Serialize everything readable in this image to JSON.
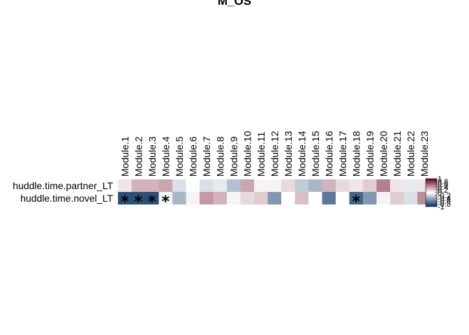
{
  "chart_data": {
    "type": "heatmap",
    "title": "M_OS",
    "rows": [
      "huddle.time.partner_LT",
      "huddle.time.novel_LT"
    ],
    "columns": [
      "Module.1",
      "Module.2",
      "Module.3",
      "Module.4",
      "Module.5",
      "Module.6",
      "Module.7",
      "Module.8",
      "Module.9",
      "Module.10",
      "Module.11",
      "Module.12",
      "Module.13",
      "Module.14",
      "Module.15",
      "Module.16",
      "Module.17",
      "Module.18",
      "Module.19",
      "Module.20",
      "Module.21",
      "Module.22",
      "Module.23"
    ],
    "values": [
      [
        0.1,
        0.3,
        0.3,
        0.35,
        -0.15,
        0.0,
        -0.15,
        -0.1,
        -0.3,
        0.35,
        0.05,
        0.05,
        0.15,
        -0.25,
        -0.35,
        0.3,
        0.15,
        0.1,
        0.2,
        0.5,
        0.1,
        -0.1,
        0.1
      ],
      [
        -0.85,
        -0.85,
        -0.85,
        -0.05,
        -0.35,
        0.05,
        0.4,
        0.3,
        -0.05,
        0.15,
        0.2,
        -0.5,
        0.0,
        0.25,
        0.0,
        -0.65,
        0.0,
        -0.75,
        -0.5,
        0.05,
        0.2,
        -0.15,
        0.45
      ]
    ],
    "significance": [
      [
        "",
        "",
        "",
        "",
        "",
        "",
        "",
        "",
        "",
        "",
        "",
        "",
        "",
        "",
        "",
        "",
        "",
        "",
        "",
        "",
        "",
        "",
        ""
      ],
      [
        "*",
        "*",
        "*",
        "*",
        "",
        "",
        "",
        "",
        "",
        "",
        "",
        "",
        "",
        "",
        "",
        "",
        "",
        "*",
        "",
        "",
        "",
        "",
        ""
      ]
    ],
    "color_scale": {
      "range": [
        -1,
        1
      ],
      "low": "#053061",
      "mid": "#ffffff",
      "high": "#67001f"
    },
    "legend_ticks": [
      "1",
      "0.8",
      "0.6",
      "0.4",
      "0.2",
      "0",
      "-0.2",
      "-0.4",
      "-0.6",
      "-0.8",
      "-1"
    ]
  }
}
